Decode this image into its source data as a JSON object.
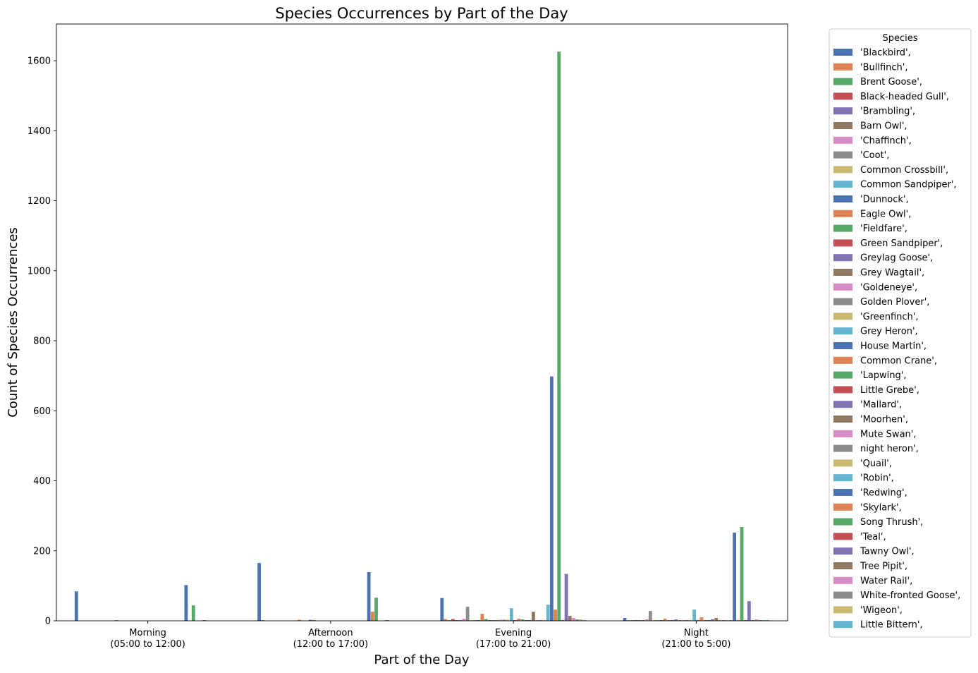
{
  "chart_data": {
    "type": "bar",
    "title": "Species Occurrences by Part of the Day",
    "xlabel": "Part of the Day",
    "ylabel": "Count of Species Occurrences",
    "ylim": [
      0,
      1705
    ],
    "yticks": [
      0,
      200,
      400,
      600,
      800,
      1000,
      1200,
      1400,
      1600
    ],
    "grid": false,
    "legend_title": "Species",
    "legend_position": "outside-right",
    "categories": [
      [
        "Morning",
        "(05:00 to 12:00)"
      ],
      [
        "Afternoon",
        "(12:00 to 17:00)"
      ],
      [
        "Evening",
        "(17:00 to 21:00)"
      ],
      [
        "Night",
        "(21:00 to 5:00)"
      ]
    ],
    "palette": [
      "#4c72b0",
      "#dd8452",
      "#55a868",
      "#c44e52",
      "#8172b3",
      "#937860",
      "#da8bc3",
      "#8c8c8c",
      "#ccb974",
      "#64b5cd"
    ],
    "series": [
      {
        "name": "'Blackbird',",
        "values": [
          84,
          165,
          65,
          8
        ]
      },
      {
        "name": "'Bullfinch',",
        "values": [
          0,
          2,
          5,
          2
        ]
      },
      {
        "name": "Brent Goose',",
        "values": [
          0,
          0,
          2,
          2
        ]
      },
      {
        "name": "Black-headed Gull',",
        "values": [
          0,
          0,
          5,
          2
        ]
      },
      {
        "name": "'Brambling',",
        "values": [
          0,
          0,
          2,
          2
        ]
      },
      {
        "name": "Barn Owl',",
        "values": [
          0,
          0,
          2,
          2
        ]
      },
      {
        "name": "'Chaffinch',",
        "values": [
          0,
          0,
          6,
          4
        ]
      },
      {
        "name": "'Coot',",
        "values": [
          0,
          0,
          40,
          28
        ]
      },
      {
        "name": "Common Crossbill',",
        "values": [
          0,
          0,
          2,
          2
        ]
      },
      {
        "name": "Common Sandpiper',",
        "values": [
          0,
          0,
          2,
          2
        ]
      },
      {
        "name": "'Dunnock',",
        "values": [
          0,
          0,
          2,
          2
        ]
      },
      {
        "name": "Eagle Owl',",
        "values": [
          2,
          3,
          20,
          6
        ]
      },
      {
        "name": "'Fieldfare',",
        "values": [
          0,
          0,
          5,
          2
        ]
      },
      {
        "name": "Green Sandpiper',",
        "values": [
          0,
          0,
          2,
          2
        ]
      },
      {
        "name": "Greylag Goose',",
        "values": [
          0,
          3,
          2,
          4
        ]
      },
      {
        "name": "Grey Wagtail',",
        "values": [
          0,
          2,
          2,
          2
        ]
      },
      {
        "name": "'Goldeneye',",
        "values": [
          0,
          0,
          3,
          2
        ]
      },
      {
        "name": "Golden Plover',",
        "values": [
          0,
          0,
          3,
          2
        ]
      },
      {
        "name": "'Greenfinch',",
        "values": [
          0,
          0,
          3,
          2
        ]
      },
      {
        "name": "Grey Heron',",
        "values": [
          0,
          0,
          36,
          32
        ]
      },
      {
        "name": "House Martin',",
        "values": [
          0,
          0,
          2,
          2
        ]
      },
      {
        "name": "Common Crane',",
        "values": [
          0,
          0,
          6,
          10
        ]
      },
      {
        "name": "'Lapwing',",
        "values": [
          0,
          0,
          4,
          2
        ]
      },
      {
        "name": "Little Grebe',",
        "values": [
          0,
          0,
          2,
          2
        ]
      },
      {
        "name": "'Mallard',",
        "values": [
          0,
          0,
          2,
          4
        ]
      },
      {
        "name": "'Moorhen',",
        "values": [
          0,
          0,
          26,
          8
        ]
      },
      {
        "name": "Mute Swan',",
        "values": [
          0,
          0,
          2,
          2
        ]
      },
      {
        "name": "night heron',",
        "values": [
          0,
          0,
          2,
          2
        ]
      },
      {
        "name": "'Quail',",
        "values": [
          0,
          0,
          2,
          2
        ]
      },
      {
        "name": "'Robin',",
        "values": [
          0,
          0,
          46,
          2
        ]
      },
      {
        "name": "'Redwing',",
        "values": [
          102,
          139,
          698,
          252
        ]
      },
      {
        "name": "'Skylark',",
        "values": [
          0,
          26,
          32,
          2
        ]
      },
      {
        "name": "Song Thrush',",
        "values": [
          44,
          66,
          1626,
          268
        ]
      },
      {
        "name": "'Teal',",
        "values": [
          0,
          0,
          2,
          2
        ]
      },
      {
        "name": "Tawny Owl',",
        "values": [
          0,
          0,
          134,
          56
        ]
      },
      {
        "name": "Tree Pipit',",
        "values": [
          2,
          2,
          14,
          2
        ]
      },
      {
        "name": "Water Rail',",
        "values": [
          0,
          0,
          8,
          4
        ]
      },
      {
        "name": "White-fronted Goose',",
        "values": [
          0,
          0,
          4,
          2
        ]
      },
      {
        "name": "'Wigeon',",
        "values": [
          0,
          0,
          4,
          2
        ]
      },
      {
        "name": "Little Bittern',",
        "values": [
          0,
          0,
          2,
          2
        ]
      }
    ]
  }
}
